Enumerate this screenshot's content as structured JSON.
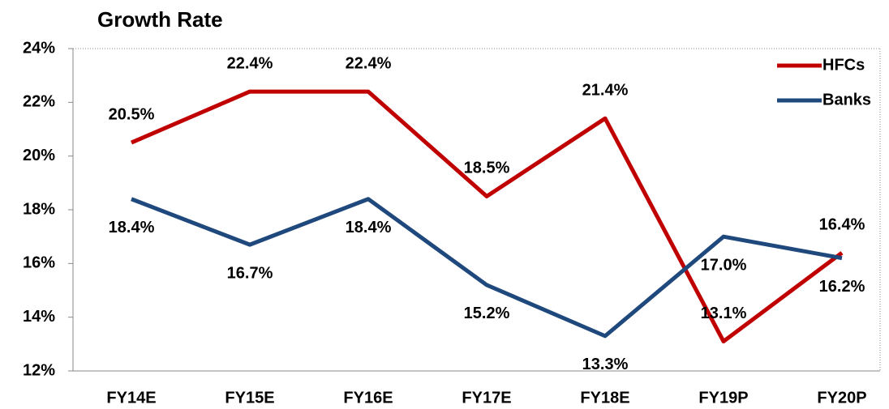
{
  "chart_data": {
    "type": "line",
    "title": "Growth Rate",
    "categories": [
      "FY14E",
      "FY15E",
      "FY16E",
      "FY17E",
      "FY18E",
      "FY19P",
      "FY20P"
    ],
    "series": [
      {
        "name": "HFCs",
        "color": "#c00000",
        "values": [
          20.5,
          22.4,
          22.4,
          18.5,
          21.4,
          13.1,
          16.4
        ],
        "value_labels": [
          "20.5%",
          "22.4%",
          "22.4%",
          "18.5%",
          "21.4%",
          "13.1%",
          "16.4%"
        ]
      },
      {
        "name": "Banks",
        "color": "#1f497d",
        "values": [
          18.4,
          16.7,
          18.4,
          15.2,
          13.3,
          17.0,
          16.2
        ],
        "value_labels": [
          "18.4%",
          "16.7%",
          "18.4%",
          "15.2%",
          "13.3%",
          "17.0%",
          "16.2%"
        ]
      }
    ],
    "ylim": [
      12,
      24
    ],
    "yticks": [
      {
        "value": 12,
        "label": "12%"
      },
      {
        "value": 14,
        "label": "14%"
      },
      {
        "value": 16,
        "label": "16%"
      },
      {
        "value": 18,
        "label": "18%"
      },
      {
        "value": 20,
        "label": "20%"
      },
      {
        "value": 22,
        "label": "22%"
      },
      {
        "value": 24,
        "label": "24%"
      }
    ],
    "grid": false,
    "legend": "upper right"
  }
}
